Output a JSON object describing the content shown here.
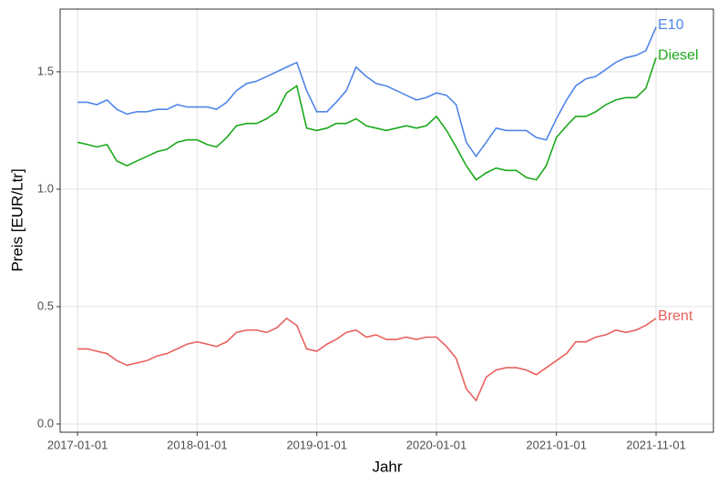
{
  "chart_data": {
    "type": "line",
    "x_label": "Jahr",
    "y_label": "Preis [EUR/Ltr]",
    "x": [
      "2017-01-01",
      "2017-02-01",
      "2017-03-01",
      "2017-04-01",
      "2017-05-01",
      "2017-06-01",
      "2017-07-01",
      "2017-08-01",
      "2017-09-01",
      "2017-10-01",
      "2017-11-01",
      "2017-12-01",
      "2018-01-01",
      "2018-02-01",
      "2018-03-01",
      "2018-04-01",
      "2018-05-01",
      "2018-06-01",
      "2018-07-01",
      "2018-08-01",
      "2018-09-01",
      "2018-10-01",
      "2018-11-01",
      "2018-12-01",
      "2019-01-01",
      "2019-02-01",
      "2019-03-01",
      "2019-04-01",
      "2019-05-01",
      "2019-06-01",
      "2019-07-01",
      "2019-08-01",
      "2019-09-01",
      "2019-10-01",
      "2019-11-01",
      "2019-12-01",
      "2020-01-01",
      "2020-02-01",
      "2020-03-01",
      "2020-04-01",
      "2020-05-01",
      "2020-06-01",
      "2020-07-01",
      "2020-08-01",
      "2020-09-01",
      "2020-10-01",
      "2020-11-01",
      "2020-12-01",
      "2021-01-01",
      "2021-02-01",
      "2021-03-01",
      "2021-04-01",
      "2021-05-01",
      "2021-06-01",
      "2021-07-01",
      "2021-08-01",
      "2021-09-01",
      "2021-10-01",
      "2021-11-01"
    ],
    "series": [
      {
        "name": "E10",
        "color": "#4f86e8",
        "values": [
          1.37,
          1.37,
          1.36,
          1.38,
          1.34,
          1.32,
          1.33,
          1.33,
          1.34,
          1.34,
          1.36,
          1.35,
          1.35,
          1.35,
          1.34,
          1.37,
          1.42,
          1.45,
          1.46,
          1.48,
          1.5,
          1.52,
          1.54,
          1.42,
          1.33,
          1.33,
          1.37,
          1.42,
          1.52,
          1.48,
          1.45,
          1.44,
          1.42,
          1.4,
          1.38,
          1.39,
          1.41,
          1.4,
          1.36,
          1.2,
          1.14,
          1.2,
          1.26,
          1.25,
          1.25,
          1.25,
          1.22,
          1.21,
          1.3,
          1.38,
          1.44,
          1.47,
          1.48,
          1.51,
          1.54,
          1.56,
          1.57,
          1.59,
          1.69
        ]
      },
      {
        "name": "Diesel",
        "color": "#1aa81a",
        "values": [
          1.2,
          1.19,
          1.18,
          1.19,
          1.12,
          1.1,
          1.12,
          1.14,
          1.16,
          1.17,
          1.2,
          1.21,
          1.21,
          1.19,
          1.18,
          1.22,
          1.27,
          1.28,
          1.28,
          1.3,
          1.33,
          1.41,
          1.44,
          1.26,
          1.25,
          1.26,
          1.28,
          1.28,
          1.3,
          1.27,
          1.26,
          1.25,
          1.26,
          1.27,
          1.26,
          1.27,
          1.31,
          1.25,
          1.18,
          1.1,
          1.04,
          1.07,
          1.09,
          1.08,
          1.08,
          1.05,
          1.04,
          1.1,
          1.22,
          1.27,
          1.31,
          1.31,
          1.33,
          1.36,
          1.38,
          1.39,
          1.39,
          1.43,
          1.56
        ]
      },
      {
        "name": "Brent",
        "color": "#e8605c",
        "values": [
          0.32,
          0.32,
          0.31,
          0.3,
          0.27,
          0.25,
          0.26,
          0.27,
          0.29,
          0.3,
          0.32,
          0.34,
          0.35,
          0.34,
          0.33,
          0.35,
          0.39,
          0.4,
          0.4,
          0.39,
          0.41,
          0.45,
          0.42,
          0.32,
          0.31,
          0.34,
          0.36,
          0.39,
          0.4,
          0.37,
          0.38,
          0.36,
          0.36,
          0.37,
          0.36,
          0.37,
          0.37,
          0.33,
          0.28,
          0.15,
          0.1,
          0.2,
          0.23,
          0.24,
          0.24,
          0.23,
          0.21,
          0.24,
          0.27,
          0.3,
          0.35,
          0.35,
          0.37,
          0.38,
          0.4,
          0.39,
          0.4,
          0.42,
          0.45
        ]
      }
    ],
    "xlim": [
      "2016-11-09",
      "2022-04-25"
    ],
    "xticks": [
      "2017-01-01",
      "2018-01-01",
      "2019-01-01",
      "2020-01-01",
      "2021-01-01",
      "2021-11-01"
    ],
    "ylim": [
      -0.035,
      1.767
    ],
    "yticks": [
      {
        "value": 0,
        "label": "0.0"
      },
      0.5,
      {
        "value": 1,
        "label": "1.0"
      },
      1.5
    ],
    "grid": true
  }
}
